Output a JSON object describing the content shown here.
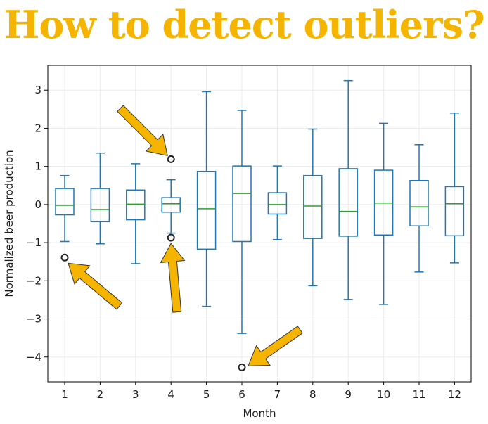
{
  "title": "How to detect outliers?",
  "chart_data": {
    "type": "box",
    "xlabel": "Month",
    "ylabel": "Normalized beer production",
    "categories": [
      "1",
      "2",
      "3",
      "4",
      "5",
      "6",
      "7",
      "8",
      "9",
      "10",
      "11",
      "12"
    ],
    "ylim": [
      -4.65,
      3.65
    ],
    "yticks": [
      3,
      2,
      1,
      0,
      -1,
      -2,
      -3,
      -4
    ],
    "ytick_labels": [
      "3",
      "2",
      "1",
      "0",
      "−1",
      "−2",
      "−3",
      "−4"
    ],
    "grid": true,
    "boxes": [
      {
        "month": "1",
        "whislo": -0.97,
        "q1": -0.27,
        "med": -0.02,
        "q3": 0.42,
        "whishi": 0.76,
        "fliers": [
          -1.39
        ]
      },
      {
        "month": "2",
        "whislo": -1.03,
        "q1": -0.45,
        "med": -0.13,
        "q3": 0.42,
        "whishi": 1.35,
        "fliers": []
      },
      {
        "month": "3",
        "whislo": -1.55,
        "q1": -0.4,
        "med": 0.01,
        "q3": 0.38,
        "whishi": 1.07,
        "fliers": []
      },
      {
        "month": "4",
        "whislo": -0.75,
        "q1": -0.2,
        "med": 0.02,
        "q3": 0.18,
        "whishi": 0.65,
        "fliers": [
          1.19,
          -0.87
        ]
      },
      {
        "month": "5",
        "whislo": -2.67,
        "q1": -1.17,
        "med": -0.11,
        "q3": 0.87,
        "whishi": 2.96,
        "fliers": []
      },
      {
        "month": "6",
        "whislo": -3.38,
        "q1": -0.97,
        "med": 0.29,
        "q3": 1.01,
        "whishi": 2.47,
        "fliers": [
          -4.27
        ]
      },
      {
        "month": "7",
        "whislo": -0.92,
        "q1": -0.25,
        "med": 0.0,
        "q3": 0.31,
        "whishi": 1.01,
        "fliers": []
      },
      {
        "month": "8",
        "whislo": -2.13,
        "q1": -0.89,
        "med": -0.04,
        "q3": 0.76,
        "whishi": 1.98,
        "fliers": []
      },
      {
        "month": "9",
        "whislo": -2.49,
        "q1": -0.83,
        "med": -0.18,
        "q3": 0.94,
        "whishi": 3.25,
        "fliers": []
      },
      {
        "month": "10",
        "whislo": -2.62,
        "q1": -0.8,
        "med": 0.04,
        "q3": 0.9,
        "whishi": 2.13,
        "fliers": []
      },
      {
        "month": "11",
        "whislo": -1.77,
        "q1": -0.56,
        "med": -0.06,
        "q3": 0.63,
        "whishi": 1.57,
        "fliers": []
      },
      {
        "month": "12",
        "whislo": -1.53,
        "q1": -0.82,
        "med": 0.02,
        "q3": 0.47,
        "whishi": 2.4,
        "fliers": []
      }
    ],
    "colors": {
      "box": "#1f77b4",
      "median": "#2ca02c",
      "arrow": "#f4b400",
      "grid": "#ebebeb",
      "title": "#f4b400"
    },
    "annotations": [
      {
        "type": "arrow",
        "points_to_month": "1",
        "points_to_value": -1.39
      },
      {
        "type": "arrow",
        "points_to_month": "4",
        "points_to_value": 1.19
      },
      {
        "type": "arrow",
        "points_to_month": "4",
        "points_to_value": -0.87
      },
      {
        "type": "arrow",
        "points_to_month": "6",
        "points_to_value": -4.27
      }
    ]
  }
}
